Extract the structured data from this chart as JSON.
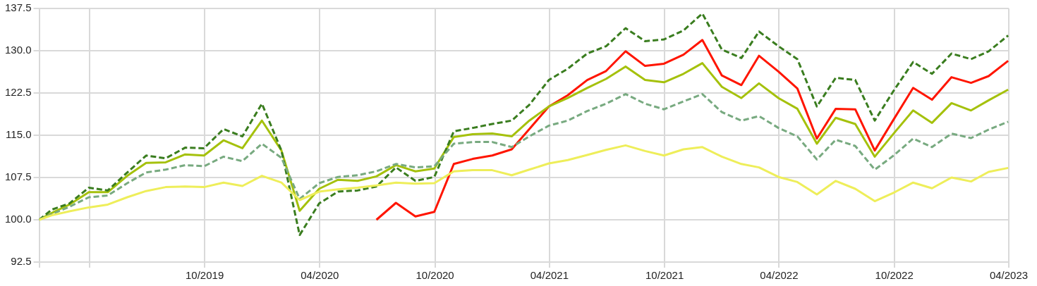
{
  "chart_data": {
    "type": "line",
    "x": [
      "2019-01-11",
      "2019-01-31",
      "2019-02-28",
      "2019-03-31",
      "2019-04-30",
      "2019-05-31",
      "2019-06-30",
      "2019-07-31",
      "2019-08-31",
      "2019-09-30",
      "2019-10-31",
      "2019-11-30",
      "2019-12-31",
      "2020-01-31",
      "2020-02-29",
      "2020-03-31",
      "2020-04-30",
      "2020-05-31",
      "2020-06-30",
      "2020-07-31",
      "2020-08-31",
      "2020-09-30",
      "2020-10-31",
      "2020-11-30",
      "2020-12-31",
      "2021-01-31",
      "2021-02-28",
      "2021-03-31",
      "2021-04-30",
      "2021-05-31",
      "2021-06-30",
      "2021-07-31",
      "2021-08-31",
      "2021-09-30",
      "2021-10-31",
      "2021-11-30",
      "2021-12-31",
      "2022-01-31",
      "2022-02-28",
      "2022-03-31",
      "2022-04-30",
      "2022-05-31",
      "2022-06-30",
      "2022-07-31",
      "2022-08-31",
      "2022-09-30",
      "2022-10-31",
      "2022-11-30",
      "2022-12-31",
      "2023-01-31",
      "2023-02-28",
      "2023-03-31"
    ],
    "series": [
      {
        "color": "#eeee5a",
        "line_style": "solid",
        "values": [
          100,
          100.8,
          101.5,
          102.2,
          102.7,
          104.0,
          105.1,
          105.8,
          105.9,
          105.8,
          106.6,
          106.0,
          107.8,
          106.6,
          103.5,
          105.0,
          105.4,
          105.7,
          106.1,
          106.6,
          106.4,
          106.5,
          108.6,
          108.8,
          108.8,
          107.9,
          108.9,
          110.0,
          110.6,
          111.5,
          112.4,
          113.2,
          112.2,
          111.4,
          112.5,
          112.9,
          111.2,
          109.9,
          109.3,
          107.6,
          106.7,
          104.5,
          106.9,
          105.5,
          103.3,
          104.8,
          106.6,
          105.6,
          107.5,
          106.8,
          108.5,
          109.2
        ]
      },
      {
        "color": "#78aa80",
        "line_style": "dashed",
        "values": [
          100,
          101.0,
          102.3,
          104.0,
          104.3,
          106.5,
          108.4,
          108.9,
          109.7,
          109.5,
          111.2,
          110.4,
          113.5,
          111.0,
          103.7,
          106.5,
          107.6,
          107.9,
          108.6,
          109.9,
          109.3,
          109.5,
          113.5,
          113.8,
          113.8,
          112.9,
          114.8,
          116.7,
          117.6,
          119.3,
          120.6,
          122.3,
          120.6,
          119.6,
          121.0,
          122.3,
          119.1,
          117.6,
          118.4,
          116.3,
          114.8,
          110.7,
          114.2,
          113.1,
          108.9,
          111.4,
          114.4,
          112.9,
          115.3,
          114.5,
          116.0,
          117.4
        ]
      },
      {
        "color": "#3a7d1f",
        "line_style": "dashed",
        "values": [
          100,
          101.8,
          102.9,
          105.7,
          105.2,
          108.4,
          111.4,
          110.9,
          112.8,
          112.7,
          116.1,
          114.8,
          120.6,
          112.3,
          97.3,
          102.9,
          105.0,
          105.2,
          105.9,
          109.3,
          106.9,
          107.6,
          115.7,
          116.3,
          117.0,
          117.6,
          120.4,
          124.8,
          126.8,
          129.5,
          130.8,
          134.0,
          131.7,
          132.0,
          133.6,
          136.6,
          130.2,
          128.7,
          133.4,
          130.8,
          128.5,
          120.1,
          125.2,
          124.8,
          117.6,
          122.9,
          128.0,
          125.9,
          129.5,
          128.5,
          129.9,
          132.7
        ]
      },
      {
        "color": "#a5c10c",
        "line_style": "solid",
        "values": [
          100,
          101.2,
          102.7,
          104.9,
          104.9,
          107.8,
          110.1,
          110.2,
          111.6,
          111.4,
          114.1,
          112.7,
          117.6,
          112.3,
          101.6,
          105.5,
          107.1,
          106.9,
          107.7,
          109.7,
          108.6,
          109.1,
          114.7,
          115.2,
          115.3,
          114.8,
          117.6,
          120.1,
          121.6,
          123.4,
          125.0,
          127.2,
          124.8,
          124.4,
          125.9,
          127.8,
          123.6,
          121.6,
          124.2,
          121.6,
          119.7,
          113.5,
          118.1,
          117.0,
          111.2,
          115.3,
          119.4,
          117.2,
          120.7,
          119.4,
          121.2,
          123.1
        ]
      },
      {
        "color": "#ff1500",
        "line_style": "solid",
        "values": [
          null,
          null,
          null,
          null,
          null,
          null,
          null,
          null,
          null,
          null,
          null,
          null,
          null,
          null,
          null,
          null,
          null,
          null,
          100,
          103.0,
          100.6,
          101.4,
          109.9,
          110.8,
          111.4,
          112.5,
          116.1,
          120.1,
          122.1,
          124.8,
          126.4,
          129.9,
          127.3,
          127.7,
          129.3,
          131.9,
          125.6,
          123.9,
          129.1,
          126.3,
          123.3,
          114.4,
          119.7,
          119.6,
          112.3,
          117.8,
          123.4,
          121.3,
          125.3,
          124.3,
          125.5,
          128.2
        ]
      }
    ],
    "xlim": [
      "2019-01-11",
      "2023-04-01"
    ],
    "xticks": [
      {
        "value": "2019-01-11",
        "label": null
      },
      {
        "value": "2019-04-01",
        "label": null
      },
      {
        "value": "2019-10-01",
        "label": "10/2019"
      },
      {
        "value": "2020-04-01",
        "label": "04/2020"
      },
      {
        "value": "2020-10-01",
        "label": "10/2020"
      },
      {
        "value": "2021-04-01",
        "label": "04/2021"
      },
      {
        "value": "2021-10-01",
        "label": "10/2021"
      },
      {
        "value": "2022-04-01",
        "label": "04/2022"
      },
      {
        "value": "2022-10-01",
        "label": "10/2022"
      },
      {
        "value": "2023-04-01",
        "label": "04/2023"
      }
    ],
    "ylim": [
      92.5,
      137.5
    ],
    "yticks": [
      {
        "value": 92.5,
        "label": "92.5"
      },
      {
        "value": 100,
        "label": "100.0"
      },
      {
        "value": 107.5,
        "label": "107.5"
      },
      {
        "value": 115,
        "label": "115.0"
      },
      {
        "value": 122.5,
        "label": "122.5"
      },
      {
        "value": 130,
        "label": "130.0"
      },
      {
        "value": 137.5,
        "label": "137.5"
      }
    ],
    "grid": true,
    "legend": false,
    "marker": "none"
  }
}
